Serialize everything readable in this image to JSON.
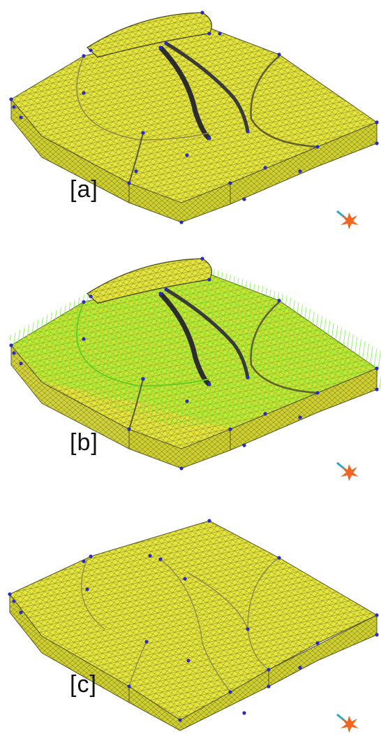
{
  "panels": [
    {
      "label": "[a]",
      "variant": "fractured"
    },
    {
      "label": "[b]",
      "variant": "vectors"
    },
    {
      "label": "[c]",
      "variant": "healed"
    }
  ],
  "colors": {
    "mesh_fill": "#e6e63c",
    "mesh_side": "#cccc2e",
    "mesh_line": "#5a5a20",
    "crack": "#2d2d2d",
    "node": "#2b2bbf",
    "vector": "#66ee22",
    "axis_cyan": "#2aa8c8",
    "axis_orange": "#ee6622"
  },
  "icons": [
    "axis-triad-icon"
  ]
}
